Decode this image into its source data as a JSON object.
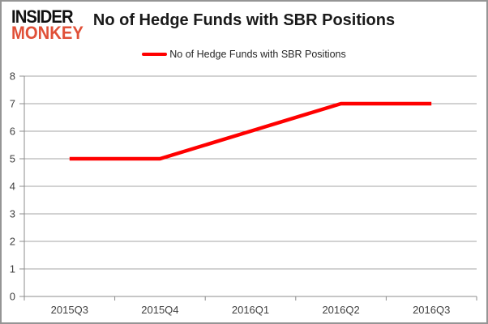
{
  "logo": {
    "line1": "INSIDER",
    "line2": "MONKEY",
    "line2_color": "#e05038"
  },
  "header": {
    "title": "No of Hedge Funds with SBR Positions"
  },
  "legend": {
    "label": "No of Hedge Funds with SBR Positions"
  },
  "chart_data": {
    "type": "line",
    "categories": [
      "2015Q3",
      "2015Q4",
      "2016Q1",
      "2016Q2",
      "2016Q3"
    ],
    "series": [
      {
        "name": "No of Hedge Funds with SBR Positions",
        "values": [
          5,
          5,
          6,
          7,
          7
        ],
        "color": "#ff0000"
      }
    ],
    "title": "No of Hedge Funds with SBR Positions",
    "xlabel": "",
    "ylabel": "",
    "ylim": [
      0,
      8
    ],
    "ytick_interval": 1,
    "grid": true,
    "legend_position": "top-center",
    "styles": {
      "gridline_color": "#a6a6a6",
      "axis_color": "#8c8c8c",
      "tick_label_color": "#3f3f3f",
      "tick_label_size": 13,
      "line_width": 4.5
    }
  }
}
